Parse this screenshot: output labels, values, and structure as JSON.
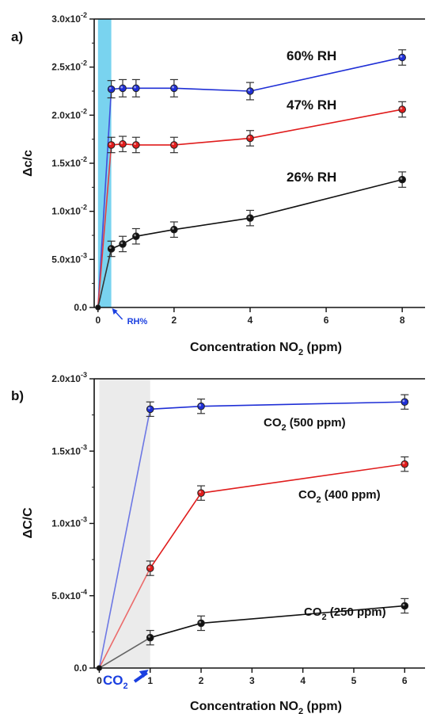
{
  "colors": {
    "blue": "#1f2fd6",
    "red": "#e01c1c",
    "black": "#111111",
    "gray": "#555555",
    "blue_light": "#5c6fd9",
    "red_light": "#e46a6a",
    "cyan_band": "#79d3ef",
    "gray_band": "#ebebeb",
    "annotation_blue": "#1a3fe0"
  },
  "chart_data": [
    {
      "panel_label": "a)",
      "type": "line",
      "xlabel": "Concentration NO",
      "xlabel_sub": "2",
      "xlabel_suffix": " (ppm)",
      "ylabel": "Δc/c",
      "xlim": [
        -0.1,
        8.6
      ],
      "ylim": [
        0,
        0.03
      ],
      "x_ticks": [
        {
          "value": 0,
          "label": "0"
        },
        {
          "value": 2,
          "label": "2"
        },
        {
          "value": 4,
          "label": "4"
        },
        {
          "value": 6,
          "label": "6"
        },
        {
          "value": 8,
          "label": "8"
        }
      ],
      "y_ticks": [
        {
          "value": 0,
          "base": "0.0",
          "exp": ""
        },
        {
          "value": 0.005,
          "base": "5.0x10",
          "exp": "-3"
        },
        {
          "value": 0.01,
          "base": "1.0x10",
          "exp": "-2"
        },
        {
          "value": 0.015,
          "base": "1.5x10",
          "exp": "-2"
        },
        {
          "value": 0.02,
          "base": "2.0x10",
          "exp": "-2"
        },
        {
          "value": 0.025,
          "base": "2.5x10",
          "exp": "-2"
        },
        {
          "value": 0.03,
          "base": "3.0x10",
          "exp": "-2"
        }
      ],
      "shaded_band": {
        "x_from": 0,
        "x_to": 0.35,
        "color": "#79d3ef"
      },
      "annotation": {
        "text": "RH%",
        "x": 0.35
      },
      "series": [
        {
          "name": "60% RH",
          "color": "#1f2fd6",
          "x": [
            0,
            0.35,
            0.65,
            1,
            2,
            4,
            8
          ],
          "y": [
            0,
            0.0227,
            0.0228,
            0.0228,
            0.0228,
            0.0225,
            0.026
          ],
          "err": [
            0,
            0.0009,
            0.0009,
            0.0009,
            0.0009,
            0.0009,
            0.0008
          ]
        },
        {
          "name": "47% RH",
          "color": "#e01c1c",
          "x": [
            0,
            0.35,
            0.65,
            1,
            2,
            4,
            8
          ],
          "y": [
            0,
            0.0169,
            0.017,
            0.0169,
            0.0169,
            0.0176,
            0.0206
          ],
          "err": [
            0,
            0.0008,
            0.0008,
            0.0008,
            0.0008,
            0.0008,
            0.0008
          ]
        },
        {
          "name": "26% RH",
          "color": "#111111",
          "x": [
            0,
            0.35,
            0.65,
            1,
            2,
            4,
            8
          ],
          "y": [
            0,
            0.0061,
            0.0066,
            0.0074,
            0.0081,
            0.0093,
            0.0133
          ],
          "err": [
            0,
            0.0008,
            0.0008,
            0.0008,
            0.0008,
            0.0008,
            0.0008
          ]
        }
      ]
    },
    {
      "panel_label": "b)",
      "type": "line",
      "xlabel": "Concentration NO",
      "xlabel_sub": "2",
      "xlabel_suffix": " (ppm)",
      "ylabel": "ΔC/C",
      "xlim": [
        -0.1,
        6.4
      ],
      "ylim": [
        0,
        0.002
      ],
      "x_ticks": [
        {
          "value": 0,
          "label": "0"
        },
        {
          "value": 1,
          "label": "1"
        },
        {
          "value": 2,
          "label": "2"
        },
        {
          "value": 3,
          "label": "3"
        },
        {
          "value": 4,
          "label": "4"
        },
        {
          "value": 5,
          "label": "5"
        },
        {
          "value": 6,
          "label": "6"
        }
      ],
      "y_ticks": [
        {
          "value": 0,
          "base": "0.0",
          "exp": ""
        },
        {
          "value": 0.0005,
          "base": "5.0x10",
          "exp": "-4"
        },
        {
          "value": 0.001,
          "base": "1.0x10",
          "exp": "-3"
        },
        {
          "value": 0.0015,
          "base": "1.5x10",
          "exp": "-3"
        },
        {
          "value": 0.002,
          "base": "2.0x10",
          "exp": "-3"
        }
      ],
      "shaded_band": {
        "x_from": 0,
        "x_to": 1,
        "color": "#ebebeb"
      },
      "annotation": {
        "text": "CO",
        "sub": "2",
        "x": 1
      },
      "series": [
        {
          "name": "CO2 (500 ppm)",
          "label_main": "CO",
          "label_sub": "2",
          "label_rest": " (500 ppm)",
          "color": "#1f2fd6",
          "x": [
            0,
            1,
            2,
            6
          ],
          "y": [
            0,
            0.00179,
            0.00181,
            0.00184
          ],
          "err": [
            0,
            5e-05,
            5e-05,
            5e-05
          ]
        },
        {
          "name": "CO2 (400 ppm)",
          "label_main": "CO",
          "label_sub": "2",
          "label_rest": " (400 ppm)",
          "color": "#e01c1c",
          "x": [
            0,
            1,
            2,
            6
          ],
          "y": [
            0,
            0.00069,
            0.00121,
            0.00141
          ],
          "err": [
            0,
            5e-05,
            5e-05,
            5e-05
          ]
        },
        {
          "name": "CO2 (250 ppm)",
          "label_main": "CO",
          "label_sub": "2",
          "label_rest": " (250 ppm)",
          "color": "#111111",
          "x": [
            0,
            1,
            2,
            6
          ],
          "y": [
            0,
            0.00021,
            0.00031,
            0.00043
          ],
          "err": [
            0,
            5e-05,
            5e-05,
            5e-05
          ]
        }
      ]
    }
  ]
}
